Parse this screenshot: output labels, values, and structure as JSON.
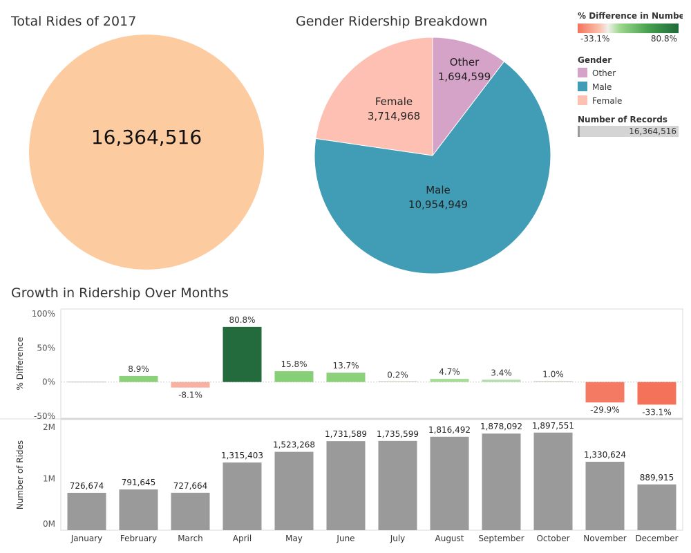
{
  "titles": {
    "total": "Total Rides of 2017",
    "gender": "Gender Ridership Breakdown",
    "growth": "Growth in Ridership Over Months"
  },
  "legend": {
    "diff_title": "% Difference in Number o..",
    "diff_min": "-33.1%",
    "diff_max": "80.8%",
    "gender_title": "Gender",
    "gender_items": [
      {
        "label": "Other",
        "color": "#d5a2c8"
      },
      {
        "label": "Male",
        "color": "#419db5"
      },
      {
        "label": "Female",
        "color": "#fdc0b2"
      }
    ],
    "records_title": "Number of Records",
    "records_value": "16,364,516"
  },
  "chart_data": [
    {
      "type": "pie",
      "title": "Total Rides of 2017",
      "values": [
        16364516
      ],
      "labels": [
        "16,364,516"
      ],
      "colors": [
        "#fdcba0"
      ]
    },
    {
      "type": "pie",
      "title": "Gender Ridership Breakdown",
      "categories": [
        "Other",
        "Male",
        "Female"
      ],
      "values": [
        1694599,
        10954949,
        3714968
      ],
      "labels": [
        "1,694,599",
        "10,954,949",
        "3,714,968"
      ],
      "colors": [
        "#d5a2c8",
        "#419db5",
        "#fdc0b2"
      ]
    },
    {
      "type": "bar",
      "title": "Growth in Ridership Over Months",
      "ylabel": "% Difference",
      "categories": [
        "January",
        "February",
        "March",
        "April",
        "May",
        "June",
        "July",
        "August",
        "September",
        "October",
        "November",
        "December"
      ],
      "values": [
        null,
        8.9,
        -8.1,
        80.8,
        15.8,
        13.7,
        0.2,
        4.7,
        3.4,
        1.0,
        -29.9,
        -33.1
      ],
      "labels": [
        "",
        "8.9%",
        "-8.1%",
        "80.8%",
        "15.8%",
        "13.7%",
        "0.2%",
        "4.7%",
        "3.4%",
        "1.0%",
        "-29.9%",
        "-33.1%"
      ],
      "colors": [
        "#cccccc",
        "#8bd17a",
        "#f8b0a0",
        "#236b3c",
        "#86cf76",
        "#8ad17a",
        "#dcd9d0",
        "#a8db98",
        "#b3deac",
        "#d3d6cc",
        "#f47a64",
        "#f4725a"
      ],
      "yticks": [
        100,
        50,
        0,
        -50
      ],
      "ytick_labels": [
        "100%",
        "50%",
        "0%",
        "-50%"
      ],
      "ylim": [
        -53,
        107
      ]
    },
    {
      "type": "bar",
      "ylabel": "Number of Rides",
      "categories": [
        "January",
        "February",
        "March",
        "April",
        "May",
        "June",
        "July",
        "August",
        "September",
        "October",
        "November",
        "December"
      ],
      "values": [
        726674,
        791645,
        727664,
        1315403,
        1523268,
        1731589,
        1735599,
        1816492,
        1878092,
        1897551,
        1330624,
        889915
      ],
      "labels": [
        "726,674",
        "791,645",
        "727,664",
        "1,315,403",
        "1,523,268",
        "1,731,589",
        "1,735,599",
        "1,816,492",
        "1,878,092",
        "1,897,551",
        "1,330,624",
        "889,915"
      ],
      "yticks": [
        2000000,
        1000000,
        0
      ],
      "ytick_labels": [
        "2M",
        "1M",
        "0M"
      ],
      "ylim": [
        0,
        2150000
      ],
      "color": "#9a9a9a"
    }
  ]
}
